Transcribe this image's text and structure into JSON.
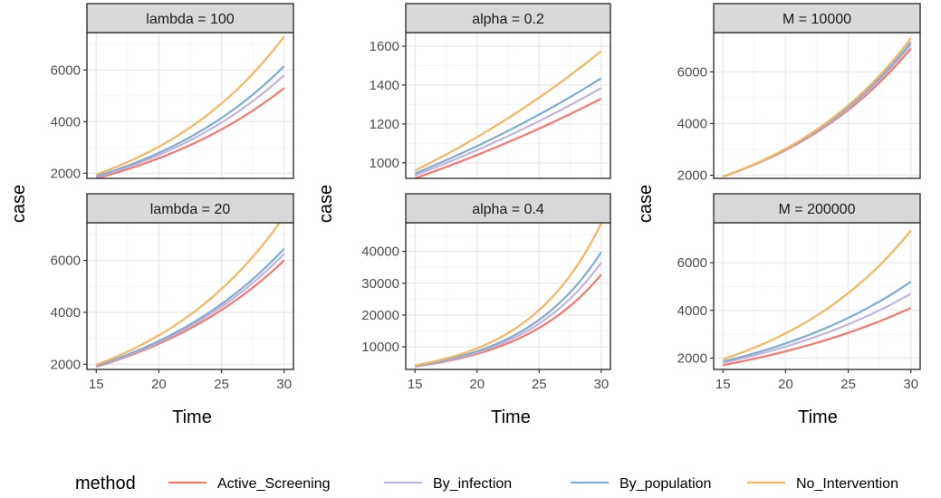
{
  "figure": {
    "xlabel": "Time",
    "ylabel": "case",
    "background_color": "#ffffff",
    "strip_color": "#d9d9d9",
    "grid_major_color": "#ebebeb",
    "grid_minor_color": "#f5f5f5",
    "panel_border_color": "#333333"
  },
  "legend": {
    "title": "method",
    "position": "bottom",
    "items": [
      {
        "label": "Active_Screening",
        "color": "#F8766D"
      },
      {
        "label": "By_infection",
        "color": "#C2B4DD"
      },
      {
        "label": "By_population",
        "color": "#7FADD1"
      },
      {
        "label": "No_Intervention",
        "color": "#F9B45E"
      }
    ]
  },
  "chart_data": [
    {
      "type": "line",
      "title": "lambda = 100",
      "x": [
        15,
        30
      ],
      "xlim": [
        15,
        30
      ],
      "xticks": [
        15,
        20,
        25,
        30
      ],
      "ylim": [
        1800,
        7450
      ],
      "yticks": [
        2000,
        4000,
        6000,
        8000
      ],
      "ytick_labels": [
        "2000",
        "4000",
        "6000",
        "8000"
      ],
      "series": [
        {
          "name": "Active_Screening",
          "values": [
            1800,
            5300
          ]
        },
        {
          "name": "By_infection",
          "values": [
            1850,
            5800
          ]
        },
        {
          "name": "By_population",
          "values": [
            1880,
            6150
          ]
        },
        {
          "name": "No_Intervention",
          "values": [
            1950,
            7300
          ]
        }
      ]
    },
    {
      "type": "line",
      "title": "alpha = 0.2",
      "x": [
        15,
        30
      ],
      "xlim": [
        15,
        30
      ],
      "xticks": [
        15,
        20,
        25,
        30
      ],
      "ylim": [
        920,
        1670
      ],
      "yticks": [
        1000,
        1200,
        1400,
        1600
      ],
      "ytick_labels": [
        "1000",
        "1200",
        "1400",
        "1600"
      ],
      "series": [
        {
          "name": "Active_Screening",
          "values": [
            920,
            1330
          ]
        },
        {
          "name": "By_infection",
          "values": [
            935,
            1385
          ]
        },
        {
          "name": "By_population",
          "values": [
            945,
            1435
          ]
        },
        {
          "name": "No_Intervention",
          "values": [
            960,
            1575
          ]
        }
      ]
    },
    {
      "type": "line",
      "title": "M = 10000",
      "x": [
        15,
        30
      ],
      "xlim": [
        15,
        30
      ],
      "xticks": [
        15,
        20,
        25,
        30
      ],
      "ylim": [
        1880,
        7520
      ],
      "yticks": [
        2000,
        4000,
        6000
      ],
      "ytick_labels": [
        "2000",
        "4000",
        "6000"
      ],
      "series": [
        {
          "name": "Active_Screening",
          "values": [
            1950,
            6900
          ]
        },
        {
          "name": "By_infection",
          "values": [
            1950,
            7050
          ]
        },
        {
          "name": "By_population",
          "values": [
            1950,
            7150
          ]
        },
        {
          "name": "No_Intervention",
          "values": [
            1950,
            7300
          ]
        }
      ]
    },
    {
      "type": "line",
      "title": "lambda = 20",
      "x": [
        15,
        30
      ],
      "xlim": [
        15,
        30
      ],
      "xticks": [
        15,
        20,
        25,
        30
      ],
      "ylim": [
        1800,
        7450
      ],
      "yticks": [
        2000,
        4000,
        6000,
        8000
      ],
      "ytick_labels": [
        "2000",
        "4000",
        "6000",
        "8000"
      ],
      "series": [
        {
          "name": "Active_Screening",
          "values": [
            1900,
            6000
          ]
        },
        {
          "name": "By_infection",
          "values": [
            1920,
            6250
          ]
        },
        {
          "name": "By_population",
          "values": [
            1940,
            6450
          ]
        },
        {
          "name": "No_Intervention",
          "values": [
            1980,
            7700
          ]
        }
      ]
    },
    {
      "type": "line",
      "title": "alpha = 0.4",
      "x": [
        15,
        30
      ],
      "xlim": [
        15,
        30
      ],
      "xticks": [
        15,
        20,
        25,
        30
      ],
      "ylim": [
        2900,
        49000
      ],
      "yticks": [
        10000,
        20000,
        30000,
        40000,
        50000
      ],
      "ytick_labels": [
        "10000",
        "20000",
        "30000",
        "40000",
        "50000"
      ],
      "series": [
        {
          "name": "Active_Screening",
          "values": [
            3800,
            32700
          ]
        },
        {
          "name": "By_infection",
          "values": [
            3900,
            36500
          ]
        },
        {
          "name": "By_population",
          "values": [
            4000,
            39800
          ]
        },
        {
          "name": "No_Intervention",
          "values": [
            4200,
            48800
          ]
        }
      ]
    },
    {
      "type": "line",
      "title": "M = 200000",
      "x": [
        15,
        30
      ],
      "xlim": [
        15,
        30
      ],
      "xticks": [
        15,
        20,
        25,
        30
      ],
      "ylim": [
        1520,
        7680
      ],
      "yticks": [
        2000,
        4000,
        6000
      ],
      "ytick_labels": [
        "2000",
        "4000",
        "6000"
      ],
      "series": [
        {
          "name": "Active_Screening",
          "values": [
            1700,
            4100
          ]
        },
        {
          "name": "By_infection",
          "values": [
            1800,
            4700
          ]
        },
        {
          "name": "By_population",
          "values": [
            1850,
            5200
          ]
        },
        {
          "name": "No_Intervention",
          "values": [
            1950,
            7350
          ]
        }
      ]
    }
  ]
}
